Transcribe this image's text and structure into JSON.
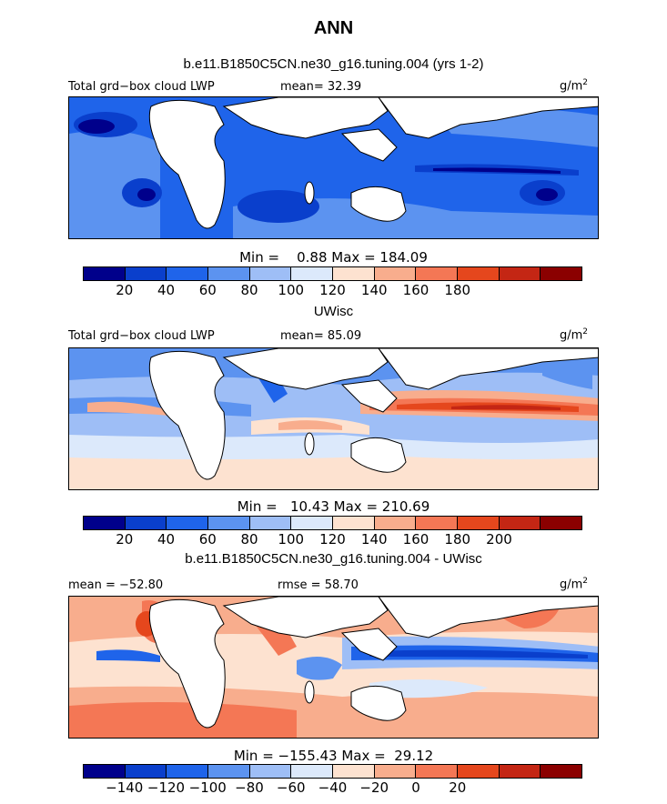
{
  "title": "ANN",
  "panels": [
    {
      "subtitle": "b.e11.B1850C5CN.ne30_g16.tuning.004 (yrs 1-2)",
      "left_label": "Total grd−box cloud LWP",
      "center_label": "mean=  32.39",
      "unit_label": "g/m²",
      "minmax": "Min =    0.88 Max = 184.09",
      "colorbar": {
        "colors": [
          "#00008b",
          "#0a3fcc",
          "#1f64ea",
          "#5c93f0",
          "#9ebef6",
          "#dce9fb",
          "#fde2d0",
          "#f8ad8d",
          "#f47755",
          "#e5471d",
          "#c42614",
          "#8b0000"
        ],
        "tick_labels": [
          "20",
          "40",
          "60",
          "80",
          "100",
          "120",
          "140",
          "160",
          "180"
        ]
      }
    },
    {
      "subtitle": "UWisc",
      "left_label": "Total grd−box cloud LWP",
      "center_label": "mean=  85.09",
      "unit_label": "g/m²",
      "minmax": "Min =   10.43 Max = 210.69",
      "colorbar": {
        "colors": [
          "#00008b",
          "#0a3fcc",
          "#1f64ea",
          "#5c93f0",
          "#9ebef6",
          "#dce9fb",
          "#fde2d0",
          "#f8ad8d",
          "#f47755",
          "#e5471d",
          "#c42614",
          "#8b0000"
        ],
        "tick_labels": [
          "20",
          "40",
          "60",
          "80",
          "100",
          "120",
          "140",
          "160",
          "180",
          "200"
        ]
      }
    },
    {
      "subtitle": "b.e11.B1850C5CN.ne30_g16.tuning.004 - UWisc",
      "left_label": "mean = −52.80",
      "center_label": "rmse =  58.70",
      "unit_label": "g/m²",
      "minmax": "Min = −155.43 Max =  29.12",
      "colorbar": {
        "colors": [
          "#00008b",
          "#0a3fcc",
          "#1f64ea",
          "#5c93f0",
          "#9ebef6",
          "#dce9fb",
          "#fde2d0",
          "#f8ad8d",
          "#f47755",
          "#e5471d",
          "#c42614",
          "#8b0000"
        ],
        "tick_labels": [
          "−140",
          "−120",
          "−100",
          "−80",
          "−60",
          "−40",
          "−20",
          "0",
          "20"
        ]
      }
    }
  ]
}
